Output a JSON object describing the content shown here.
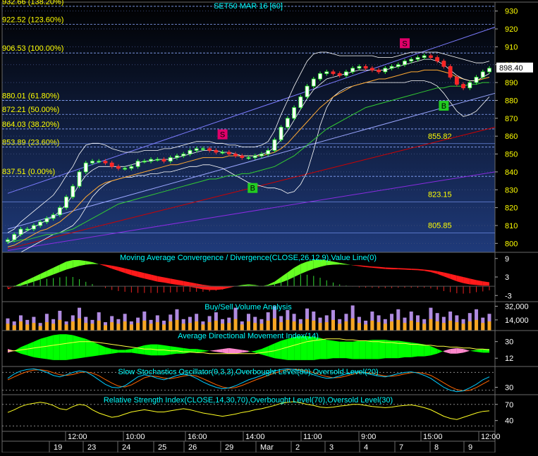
{
  "chart_data": [
    {
      "type": "line",
      "title": "SET50 MAR 16  [60]",
      "ylim": [
        795,
        935
      ],
      "yticks": [
        800,
        810,
        820,
        830,
        840,
        850,
        860,
        870,
        880,
        890,
        900,
        910,
        920,
        930
      ],
      "last_price": "898.40",
      "fib_levels": [
        {
          "label": "932.66 (138.20%)",
          "value": 932.66
        },
        {
          "label": "922.52 (123.60%)",
          "value": 922.52
        },
        {
          "label": "906.53 (100.00%)",
          "value": 906.53
        },
        {
          "label": "880.01 (61.80%)",
          "value": 880.01
        },
        {
          "label": "872.21 (50.00%)",
          "value": 872.21
        },
        {
          "label": "864.03 (38.20%)",
          "value": 864.03
        },
        {
          "label": "853.89 (23.60%)",
          "value": 853.89
        },
        {
          "label": "837.51 (0.00%)",
          "value": 837.51
        }
      ],
      "level_labels": [
        {
          "label": "855.82",
          "value": 855.82
        },
        {
          "label": "823.15",
          "value": 823.15
        },
        {
          "label": "805.85",
          "value": 805.85
        }
      ],
      "signals": [
        {
          "label": "S",
          "color": "#e0006a"
        },
        {
          "label": "B",
          "color": "#22cc22"
        },
        {
          "label": "S",
          "color": "#e0006a"
        },
        {
          "label": "B",
          "color": "#22cc22"
        }
      ],
      "close": [
        802,
        805,
        808,
        808,
        810,
        812,
        814,
        816,
        820,
        826,
        832,
        840,
        845,
        846,
        846,
        845,
        843,
        842,
        842,
        843,
        846,
        846,
        847,
        847,
        846,
        848,
        849,
        850,
        852,
        853,
        853,
        852,
        851,
        851,
        850,
        849,
        848,
        848,
        849,
        850,
        852,
        858,
        865,
        870,
        876,
        882,
        888,
        892,
        895,
        896,
        895,
        894,
        896,
        898,
        899,
        898,
        897,
        896,
        898,
        899,
        900,
        902,
        903,
        904,
        905,
        904,
        902,
        899,
        893,
        889,
        887,
        890,
        893,
        896,
        898
      ],
      "ma_fast": [
        800,
        802,
        805,
        807,
        809,
        811,
        813,
        815,
        818,
        822,
        827,
        833,
        838,
        841,
        843,
        843,
        843,
        843,
        843,
        844,
        845,
        846,
        846,
        847,
        847,
        847,
        848,
        849,
        850,
        851,
        852,
        852,
        852,
        851,
        851,
        850,
        849,
        849,
        849,
        850,
        851,
        854,
        858,
        863,
        869,
        875,
        881,
        886,
        889,
        892,
        893,
        894,
        895,
        896,
        897,
        897,
        897,
        897,
        897,
        898,
        899,
        900,
        901,
        902,
        903,
        903,
        902,
        900,
        897,
        894,
        892,
        891,
        891,
        893,
        895
      ],
      "ma_mid": [
        798,
        799,
        801,
        803,
        805,
        807,
        808,
        810,
        812,
        815,
        818,
        822,
        826,
        829,
        832,
        834,
        835,
        836,
        837,
        838,
        839,
        840,
        841,
        842,
        843,
        844,
        844,
        845,
        846,
        847,
        848,
        848,
        848,
        848,
        849,
        849,
        849,
        849,
        849,
        849,
        850,
        851,
        853,
        856,
        860,
        864,
        868,
        872,
        876,
        879,
        882,
        884,
        886,
        888,
        889,
        890,
        891,
        892,
        892,
        893,
        894,
        895,
        896,
        896,
        897,
        897,
        897,
        896,
        895,
        893,
        892,
        891,
        891,
        892,
        893
      ],
      "ma_slow": [
        801,
        801,
        802,
        802,
        803,
        804,
        805,
        805,
        806,
        807,
        808,
        810,
        812,
        814,
        816,
        818,
        820,
        822,
        823,
        824,
        825,
        826,
        827,
        828,
        829,
        830,
        831,
        832,
        833,
        834,
        835,
        836,
        836,
        837,
        838,
        838,
        839,
        839,
        840,
        841,
        842,
        843,
        845,
        847,
        849,
        852,
        855,
        858,
        861,
        864,
        866,
        868,
        870,
        872,
        874,
        876,
        877,
        878,
        879,
        880,
        881,
        882,
        883,
        884,
        885,
        886,
        887,
        887,
        888,
        888,
        888,
        889,
        889,
        890,
        890
      ],
      "bb_upper": [
        806,
        808,
        812,
        815,
        818,
        821,
        824,
        827,
        832,
        838,
        843,
        850,
        855,
        856,
        856,
        855,
        853,
        852,
        851,
        851,
        851,
        852,
        852,
        852,
        853,
        853,
        854,
        855,
        856,
        857,
        857,
        857,
        856,
        856,
        855,
        855,
        854,
        854,
        854,
        855,
        857,
        863,
        872,
        880,
        888,
        895,
        902,
        906,
        907,
        907,
        906,
        905,
        905,
        905,
        905,
        905,
        905,
        904,
        904,
        904,
        905,
        906,
        907,
        907,
        907,
        907,
        907,
        906,
        905,
        904,
        903,
        902,
        901,
        901,
        902
      ],
      "bb_lower": [
        794,
        794,
        795,
        797,
        799,
        801,
        803,
        805,
        806,
        808,
        810,
        814,
        820,
        826,
        830,
        833,
        835,
        836,
        837,
        837,
        838,
        838,
        839,
        839,
        840,
        840,
        841,
        842,
        843,
        843,
        844,
        844,
        843,
        842,
        840,
        838,
        836,
        834,
        833,
        832,
        831,
        831,
        830,
        828,
        829,
        833,
        840,
        852,
        866,
        876,
        882,
        885,
        887,
        888,
        889,
        890,
        890,
        890,
        890,
        890,
        890,
        890,
        891,
        891,
        891,
        890,
        888,
        884,
        879,
        874,
        871,
        872,
        874,
        878,
        882
      ]
    },
    {
      "type": "area",
      "title": "Moving Average Convergence / Divergence(CLOSE,26,12,9),Value Line(0)",
      "ylim": [
        -5,
        11
      ],
      "yticks": [
        9,
        3,
        -3
      ],
      "macd": [
        -1,
        0,
        1,
        2,
        3,
        4,
        5,
        6,
        7,
        8,
        8.5,
        8.5,
        8.2,
        7.8,
        7.2,
        6.5,
        5.7,
        5,
        4.3,
        3.6,
        3,
        2.5,
        2,
        1.5,
        1.2,
        0.8,
        0.5,
        0.2,
        -0.2,
        -0.6,
        -1,
        -1.2,
        -1.2,
        -1,
        -0.5,
        0,
        0.4,
        0.6,
        0.4,
        0,
        0.5,
        1.5,
        3,
        4.5,
        6,
        7.2,
        8,
        8.5,
        8.6,
        8.4,
        8,
        7.6,
        7.2,
        6.8,
        6.5,
        6.2,
        6,
        5.8,
        5.6,
        5.5,
        5.5,
        5.4,
        5.3,
        5.2,
        5,
        4.6,
        4,
        3.2,
        2.4,
        1.6,
        1,
        0.6,
        0.4,
        0.2,
        0.2
      ],
      "signal": [
        -0.5,
        -0.2,
        0.2,
        0.8,
        1.5,
        2.2,
        3,
        3.8,
        4.6,
        5.4,
        6,
        6.6,
        7,
        7.2,
        7.2,
        7,
        6.7,
        6.3,
        5.8,
        5.3,
        4.8,
        4.3,
        3.8,
        3.3,
        2.9,
        2.5,
        2.1,
        1.7,
        1.3,
        0.9,
        0.5,
        0.2,
        0,
        -0.1,
        -0.1,
        0,
        0.1,
        0.2,
        0.2,
        0.1,
        0.2,
        0.6,
        1.2,
        2,
        3,
        4,
        4.9,
        5.7,
        6.3,
        6.8,
        7,
        7.1,
        7,
        6.9,
        6.8,
        6.6,
        6.4,
        6.3,
        6.1,
        6,
        5.9,
        5.8,
        5.7,
        5.6,
        5.4,
        5.2,
        4.9,
        4.5,
        4,
        3.5,
        3,
        2.5,
        2,
        1.6,
        1.3
      ]
    },
    {
      "type": "bar",
      "title": "Buy/Sell Volume Analysis",
      "ylim": [
        0,
        38000
      ],
      "yticks": [
        32000,
        14000
      ],
      "yticklabels": [
        "32,000",
        "14,000"
      ],
      "series": [
        {
          "color": "#f5a623",
          "values": [
            9000,
            7000,
            12000,
            8000,
            10000,
            6000,
            11000,
            9000,
            14000,
            8000,
            12000,
            16000,
            10000,
            9000,
            13000,
            7000,
            11000,
            9000,
            12000,
            8000,
            10000,
            13000,
            9000,
            11000,
            8000,
            12000,
            14000,
            9000,
            10000,
            12000,
            8000,
            11000,
            13000,
            9000,
            10000,
            15000,
            8000,
            12000,
            10000,
            9000,
            13000,
            16000,
            11000,
            14000,
            12000,
            9000,
            15000,
            13000,
            10000,
            11000,
            14000,
            9000,
            12000,
            16000,
            10000,
            8000,
            13000,
            11000,
            9000,
            12000,
            14000,
            10000,
            13000,
            11000,
            9000,
            15000,
            12000,
            10000,
            13000,
            11000,
            9000,
            12000,
            14000,
            10000,
            12000
          ]
        },
        {
          "color": "#b08be0",
          "values": [
            16000,
            12000,
            20000,
            14000,
            18000,
            10000,
            22000,
            15000,
            26000,
            12000,
            20000,
            30000,
            18000,
            14000,
            24000,
            11000,
            19000,
            15000,
            22000,
            12000,
            17000,
            25000,
            14000,
            20000,
            13000,
            21000,
            28000,
            15000,
            18000,
            22000,
            12000,
            19000,
            24000,
            15000,
            17000,
            30000,
            12000,
            22000,
            18000,
            15000,
            24000,
            32000,
            19000,
            27000,
            22000,
            15000,
            29000,
            25000,
            17000,
            20000,
            27000,
            15000,
            22000,
            33000,
            18000,
            13000,
            25000,
            20000,
            15000,
            22000,
            28000,
            17000,
            25000,
            20000,
            15000,
            30000,
            23000,
            18000,
            25000,
            20000,
            15000,
            23000,
            28000,
            17000,
            22000
          ]
        }
      ]
    },
    {
      "type": "area",
      "title": "Average Directional Movement Index(14)",
      "ylim": [
        3,
        42
      ],
      "yticks": [
        30,
        12
      ],
      "di_plus": [
        18,
        20,
        24,
        27,
        30,
        33,
        35,
        37,
        38,
        38,
        37,
        35,
        33,
        30,
        27,
        24,
        22,
        21,
        21,
        22,
        24,
        26,
        27,
        27,
        26,
        25,
        24,
        23,
        22,
        22,
        21,
        20,
        19,
        18,
        17,
        17,
        18,
        19,
        20,
        22,
        25,
        28,
        31,
        33,
        35,
        36,
        36,
        35,
        34,
        32,
        31,
        30,
        30,
        30,
        31,
        31,
        32,
        32,
        32,
        31,
        31,
        30,
        29,
        28,
        27,
        25,
        22,
        19,
        17,
        17,
        18,
        20,
        21,
        22,
        22
      ],
      "di_minus": [
        22,
        20,
        17,
        15,
        13,
        12,
        11,
        10,
        10,
        10,
        11,
        12,
        13,
        14,
        15,
        16,
        17,
        18,
        18,
        18,
        17,
        16,
        15,
        15,
        15,
        16,
        17,
        17,
        18,
        18,
        19,
        20,
        21,
        22,
        23,
        22,
        21,
        20,
        18,
        16,
        14,
        12,
        11,
        10,
        10,
        10,
        10,
        10,
        11,
        11,
        12,
        12,
        12,
        11,
        11,
        11,
        11,
        11,
        12,
        12,
        12,
        13,
        13,
        14,
        14,
        15,
        17,
        20,
        22,
        23,
        22,
        20,
        19,
        18,
        18
      ],
      "adx": [
        20,
        20,
        21,
        22,
        23,
        24,
        25,
        26,
        27,
        28,
        29,
        30,
        30,
        30,
        29,
        28,
        27,
        26,
        25,
        24,
        23,
        22,
        22,
        21,
        21,
        20,
        20,
        19,
        19,
        18,
        18,
        17,
        17,
        17,
        17,
        17,
        17,
        17,
        17,
        18,
        19,
        20,
        22,
        24,
        26,
        28,
        30,
        31,
        32,
        33,
        33,
        33,
        32,
        32,
        31,
        31,
        30,
        30,
        29,
        29,
        28,
        28,
        27,
        27,
        26,
        26,
        25,
        25,
        24,
        24,
        23,
        23,
        22,
        22,
        21
      ]
    },
    {
      "type": "line",
      "title": "Slow Stochastics Oscillator(9,3,3),Overbought Level(80),Oversold Level(20)",
      "ylim": [
        5,
        100
      ],
      "yticks": [
        30
      ],
      "overbought": 80,
      "oversold": 20,
      "k": [
        60,
        75,
        85,
        90,
        92,
        88,
        80,
        70,
        65,
        72,
        80,
        85,
        82,
        70,
        55,
        40,
        30,
        28,
        35,
        50,
        65,
        72,
        68,
        60,
        55,
        62,
        70,
        74,
        70,
        60,
        48,
        38,
        30,
        25,
        28,
        35,
        45,
        55,
        62,
        70,
        78,
        85,
        90,
        92,
        90,
        85,
        80,
        72,
        65,
        60,
        62,
        68,
        75,
        80,
        82,
        78,
        72,
        68,
        65,
        70,
        76,
        80,
        82,
        78,
        70,
        60,
        45,
        30,
        20,
        15,
        18,
        28,
        40,
        55,
        65
      ],
      "d": [
        55,
        65,
        75,
        83,
        88,
        89,
        86,
        79,
        72,
        70,
        73,
        79,
        82,
        78,
        69,
        56,
        44,
        34,
        31,
        38,
        50,
        62,
        68,
        66,
        61,
        59,
        63,
        68,
        71,
        68,
        59,
        49,
        39,
        31,
        27,
        29,
        36,
        45,
        54,
        62,
        70,
        78,
        85,
        89,
        91,
        89,
        85,
        79,
        72,
        66,
        62,
        63,
        68,
        74,
        79,
        80,
        77,
        72,
        68,
        67,
        70,
        75,
        79,
        80,
        77,
        70,
        58,
        45,
        32,
        22,
        18,
        20,
        29,
        41,
        53
      ]
    },
    {
      "type": "line",
      "title": "Relative Strength Index(CLOSE,14,30,70),Overbought Level(70),Oversold Level(30)",
      "ylim": [
        20,
        88
      ],
      "yticks": [
        70,
        40
      ],
      "overbought": 70,
      "oversold": 30,
      "values": [
        55,
        60,
        66,
        70,
        72,
        74,
        72,
        68,
        62,
        60,
        66,
        70,
        68,
        60,
        54,
        50,
        46,
        48,
        52,
        56,
        58,
        60,
        58,
        56,
        56,
        58,
        60,
        62,
        60,
        57,
        54,
        52,
        50,
        48,
        50,
        52,
        55,
        57,
        60,
        62,
        65,
        68,
        72,
        74,
        75,
        73,
        70,
        68,
        65,
        64,
        65,
        67,
        68,
        70,
        70,
        68,
        66,
        65,
        64,
        65,
        67,
        68,
        69,
        67,
        64,
        60,
        54,
        48,
        44,
        42,
        46,
        50,
        54,
        57,
        58
      ]
    },
    {
      "type": "table",
      "title": "",
      "time_labels": [
        "12:00",
        "10:00",
        "16:00",
        "14:00",
        "11:00",
        "9:00",
        "15:00",
        "12:00"
      ],
      "date_labels": [
        "19",
        "23",
        "24",
        "25",
        "26",
        "29",
        "Mar",
        "2",
        "3",
        "4",
        "7",
        "8",
        "9"
      ]
    }
  ]
}
